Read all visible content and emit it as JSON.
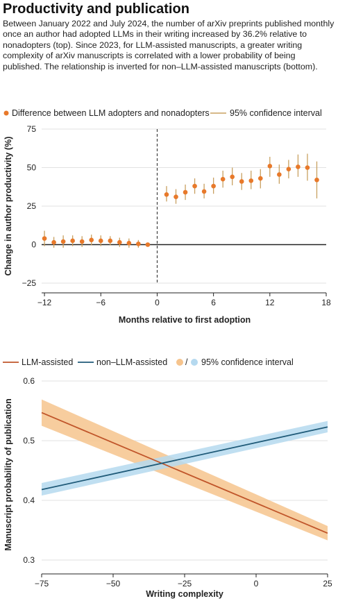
{
  "title": "Productivity and publication",
  "description": "Between January 2022 and July 2024, the number of arXiv preprints published monthly once an author had adopted LLMs in their writing increased by 36.2% relative to nonadopters (top). Since 2023, for LLM-assisted manuscripts, a greater writing complexity of arXiv manuscripts is correlated with a lower probability of being published. The relationship is inverted for non–LLM-assisted manuscripts (bottom).",
  "colors": {
    "orange": "#e8792a",
    "ci_tan": "#c8a060",
    "llm": "#c0552a",
    "llm_band": "#f6c48d",
    "non_llm": "#1f5a78",
    "non_llm_band": "#b5d9ef"
  },
  "chart_data": [
    {
      "type": "scatter",
      "legend": {
        "points": "Difference between LLM adopters and nonadopters",
        "ci": "95% confidence interval"
      },
      "xlabel": "Months relative to first adoption",
      "ylabel": "Change in author productivity (%)",
      "xlim": [
        -12.3,
        18
      ],
      "ylim": [
        -25,
        75
      ],
      "xticks": [
        -12,
        -6,
        0,
        6,
        12,
        18
      ],
      "yticks": [
        -25,
        0,
        25,
        50,
        75
      ],
      "points": [
        {
          "x": -12,
          "y": 4,
          "lo": -1,
          "hi": 9
        },
        {
          "x": -11,
          "y": 1.5,
          "lo": -2,
          "hi": 5
        },
        {
          "x": -10,
          "y": 2,
          "lo": -2,
          "hi": 6
        },
        {
          "x": -9,
          "y": 2.5,
          "lo": -1,
          "hi": 6
        },
        {
          "x": -8,
          "y": 2,
          "lo": -1.5,
          "hi": 5.5
        },
        {
          "x": -7,
          "y": 3,
          "lo": -0.5,
          "hi": 6.5
        },
        {
          "x": -6,
          "y": 2.5,
          "lo": -1,
          "hi": 6
        },
        {
          "x": -5,
          "y": 2.5,
          "lo": -0.5,
          "hi": 5.5
        },
        {
          "x": -4,
          "y": 1.5,
          "lo": -1.5,
          "hi": 4.5
        },
        {
          "x": -3,
          "y": 1,
          "lo": -2,
          "hi": 4
        },
        {
          "x": -2,
          "y": 0.5,
          "lo": -2,
          "hi": 3
        },
        {
          "x": -1,
          "y": 0,
          "lo": 0,
          "hi": 0
        },
        {
          "x": 1,
          "y": 32.5,
          "lo": 28,
          "hi": 38
        },
        {
          "x": 2,
          "y": 31,
          "lo": 26.5,
          "hi": 36
        },
        {
          "x": 3,
          "y": 34,
          "lo": 29,
          "hi": 39
        },
        {
          "x": 4,
          "y": 38,
          "lo": 33,
          "hi": 43
        },
        {
          "x": 5,
          "y": 34.5,
          "lo": 30,
          "hi": 39.5
        },
        {
          "x": 6,
          "y": 38,
          "lo": 33,
          "hi": 43.5
        },
        {
          "x": 7,
          "y": 42.5,
          "lo": 37,
          "hi": 48
        },
        {
          "x": 8,
          "y": 44,
          "lo": 38.5,
          "hi": 50
        },
        {
          "x": 9,
          "y": 41,
          "lo": 35.5,
          "hi": 46.5
        },
        {
          "x": 10,
          "y": 41.5,
          "lo": 36,
          "hi": 48
        },
        {
          "x": 11,
          "y": 43,
          "lo": 36.5,
          "hi": 49
        },
        {
          "x": 12,
          "y": 51,
          "lo": 44,
          "hi": 57
        },
        {
          "x": 13,
          "y": 45.5,
          "lo": 39.5,
          "hi": 52
        },
        {
          "x": 14,
          "y": 49,
          "lo": 43,
          "hi": 55
        },
        {
          "x": 15,
          "y": 50.5,
          "lo": 44,
          "hi": 58.5
        },
        {
          "x": 16,
          "y": 50,
          "lo": 41.5,
          "hi": 59
        },
        {
          "x": 17,
          "y": 42,
          "lo": 30,
          "hi": 54
        }
      ]
    },
    {
      "type": "line",
      "legend": {
        "llm": "LLM-assisted",
        "non_llm": "non–LLM-assisted",
        "ci": "95% confidence interval",
        "slash": "/"
      },
      "xlabel": "Writing complexity",
      "ylabel": "Manuscript probability of publication",
      "xlim": [
        -75,
        25
      ],
      "ylim": [
        0.3,
        0.6
      ],
      "xticks": [
        -75,
        -50,
        -25,
        0,
        25
      ],
      "yticks": [
        0.3,
        0.4,
        0.5,
        0.6
      ],
      "series": [
        {
          "name": "LLM-assisted",
          "x": [
            -75,
            25
          ],
          "y": [
            0.547,
            0.345
          ],
          "ci_lo": [
            0.525,
            0.333
          ],
          "ci_hi": [
            0.569,
            0.357
          ]
        },
        {
          "name": "non–LLM-assisted",
          "x": [
            -75,
            25
          ],
          "y": [
            0.418,
            0.523
          ],
          "ci_lo": [
            0.408,
            0.514
          ],
          "ci_hi": [
            0.429,
            0.533
          ]
        }
      ]
    }
  ]
}
